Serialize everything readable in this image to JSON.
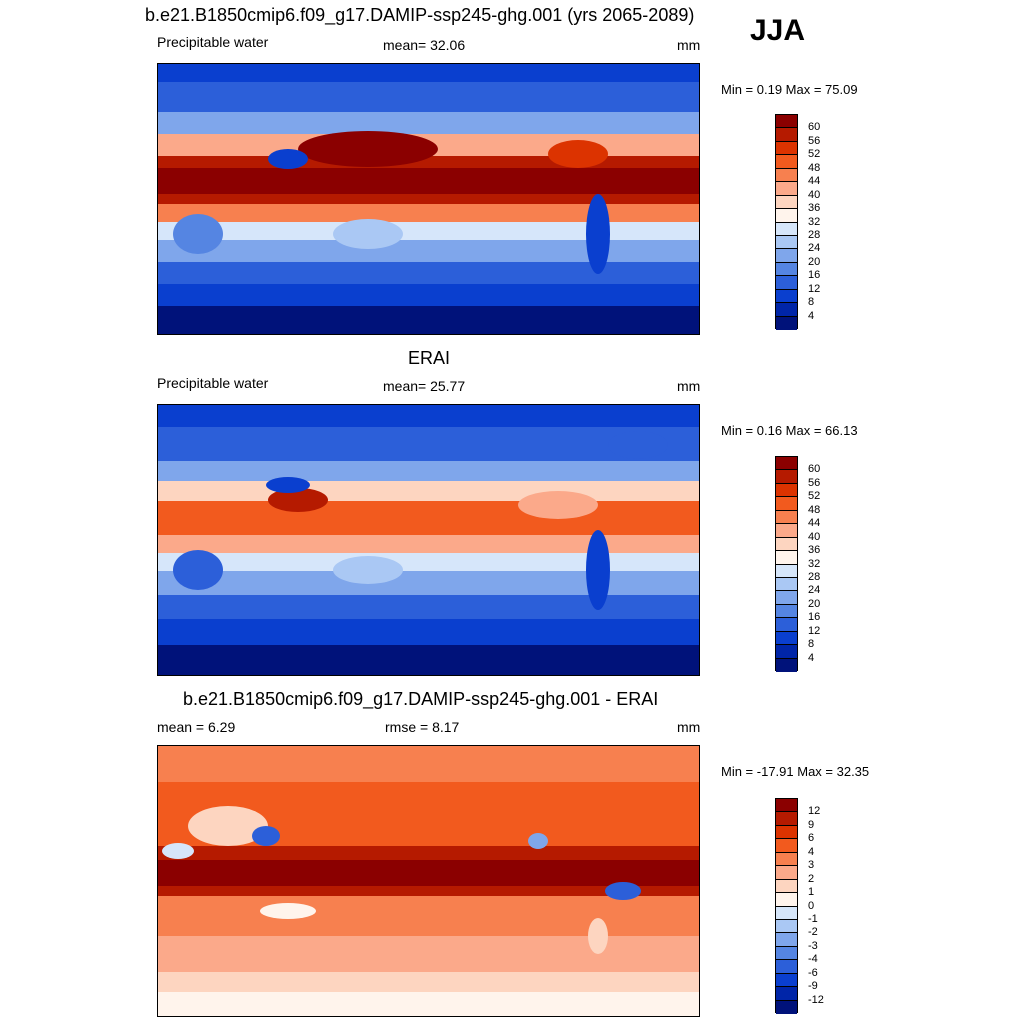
{
  "season": "JJA",
  "panels": [
    {
      "title": "b.e21.B1850cmip6.f09_g17.DAMIP-ssp245-ghg.001 (yrs 2065-2089)",
      "left_label": "Precipitable water",
      "center_label": "mean=  32.06",
      "units": "mm",
      "minmax": "Min =   0.19 Max =  75.09",
      "colorbar": {
        "colors": [
          "#8b0000",
          "#b51a00",
          "#dc3300",
          "#f25a1e",
          "#f7804f",
          "#fba98a",
          "#fdd5c0",
          "#fff4ec",
          "#d6e6fa",
          "#aac8f4",
          "#7fa6eb",
          "#5585e2",
          "#2c5fd9",
          "#0a3fcf",
          "#0025a8",
          "#00127a"
        ],
        "labels": [
          "60",
          "56",
          "52",
          "48",
          "44",
          "40",
          "36",
          "32",
          "28",
          "24",
          "20",
          "16",
          "12",
          "8",
          "4"
        ]
      }
    },
    {
      "title": "ERAI",
      "left_label": "Precipitable water",
      "center_label": "mean=  25.77",
      "units": "mm",
      "minmax": "Min =   0.16 Max =  66.13",
      "colorbar": {
        "colors": [
          "#8b0000",
          "#b51a00",
          "#dc3300",
          "#f25a1e",
          "#f7804f",
          "#fba98a",
          "#fdd5c0",
          "#fff4ec",
          "#d6e6fa",
          "#aac8f4",
          "#7fa6eb",
          "#5585e2",
          "#2c5fd9",
          "#0a3fcf",
          "#0025a8",
          "#00127a"
        ],
        "labels": [
          "60",
          "56",
          "52",
          "48",
          "44",
          "40",
          "36",
          "32",
          "28",
          "24",
          "20",
          "16",
          "12",
          "8",
          "4"
        ]
      }
    },
    {
      "title": "b.e21.B1850cmip6.f09_g17.DAMIP-ssp245-ghg.001 - ERAI",
      "left_label": "mean =   6.29",
      "center_label": "rmse =   8.17",
      "units": "mm",
      "minmax": "Min = -17.91 Max =  32.35",
      "colorbar": {
        "colors": [
          "#8b0000",
          "#b51a00",
          "#dc3300",
          "#f25a1e",
          "#f7804f",
          "#fba98a",
          "#fdd5c0",
          "#fff4ec",
          "#d6e6fa",
          "#aac8f4",
          "#7fa6eb",
          "#5585e2",
          "#2c5fd9",
          "#0a3fcf",
          "#0025a8",
          "#00127a"
        ],
        "labels": [
          "12",
          "9",
          "6",
          "4",
          "3",
          "2",
          "1",
          "0",
          "-1",
          "-2",
          "-3",
          "-4",
          "-6",
          "-9",
          "-12"
        ]
      }
    }
  ]
}
